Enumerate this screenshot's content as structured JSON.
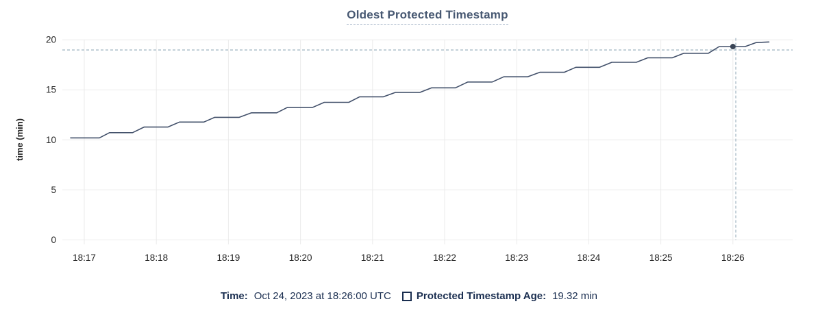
{
  "header": {
    "title": "Oldest Protected Timestamp"
  },
  "chart_data": {
    "type": "line",
    "title": "Oldest Protected Timestamp",
    "xlabel": "",
    "ylabel": "time (min)",
    "x_origin_label": "18:17",
    "x_tick_labels": [
      "18:17",
      "18:18",
      "18:19",
      "18:20",
      "18:21",
      "18:22",
      "18:23",
      "18:24",
      "18:25",
      "18:26"
    ],
    "y_ticks": [
      0,
      5,
      10,
      15,
      20
    ],
    "ylim": [
      0,
      20
    ],
    "grid": true,
    "legend_position": "bottom",
    "series": [
      {
        "name": "Protected Timestamp Age",
        "unit": "min",
        "points_minutes_after_1817": [
          [
            -0.19,
            10.2
          ],
          [
            0.21,
            10.2
          ],
          [
            0.35,
            10.72
          ],
          [
            0.67,
            10.72
          ],
          [
            0.83,
            11.28
          ],
          [
            1.16,
            11.28
          ],
          [
            1.32,
            11.78
          ],
          [
            1.66,
            11.78
          ],
          [
            1.81,
            12.25
          ],
          [
            2.15,
            12.25
          ],
          [
            2.32,
            12.7
          ],
          [
            2.67,
            12.7
          ],
          [
            2.82,
            13.25
          ],
          [
            3.17,
            13.25
          ],
          [
            3.33,
            13.75
          ],
          [
            3.67,
            13.75
          ],
          [
            3.82,
            14.3
          ],
          [
            4.15,
            14.3
          ],
          [
            4.32,
            14.75
          ],
          [
            4.66,
            14.75
          ],
          [
            4.82,
            15.2
          ],
          [
            5.15,
            15.2
          ],
          [
            5.32,
            15.78
          ],
          [
            5.66,
            15.78
          ],
          [
            5.82,
            16.3
          ],
          [
            6.15,
            16.3
          ],
          [
            6.32,
            16.75
          ],
          [
            6.66,
            16.75
          ],
          [
            6.82,
            17.25
          ],
          [
            7.15,
            17.25
          ],
          [
            7.32,
            17.75
          ],
          [
            7.66,
            17.75
          ],
          [
            7.82,
            18.2
          ],
          [
            8.16,
            18.2
          ],
          [
            8.32,
            18.65
          ],
          [
            8.66,
            18.65
          ],
          [
            8.81,
            19.32
          ],
          [
            9.17,
            19.32
          ],
          [
            9.32,
            19.72
          ],
          [
            9.5,
            19.78
          ]
        ]
      }
    ],
    "hover": {
      "point_t": 9.0,
      "point_value": 19.32,
      "cursor_t": 9.04,
      "cursor_value": 18.98
    }
  },
  "legend": {
    "time_label": "Time:",
    "time_value": "Oct 24, 2023 at 18:26:00 UTC",
    "series_label": "Protected Timestamp Age:",
    "series_value": "19.32 min",
    "checkbox_checked": false
  },
  "colors": {
    "line": "#42506a",
    "dot": "#394455",
    "title_text": "#475872",
    "title_underline": "#b6c2d2",
    "legend_text": "#1a2e50",
    "axis_text": "#242424",
    "gridline": "#ebebeb",
    "crosshair": "#9fb3c0"
  }
}
